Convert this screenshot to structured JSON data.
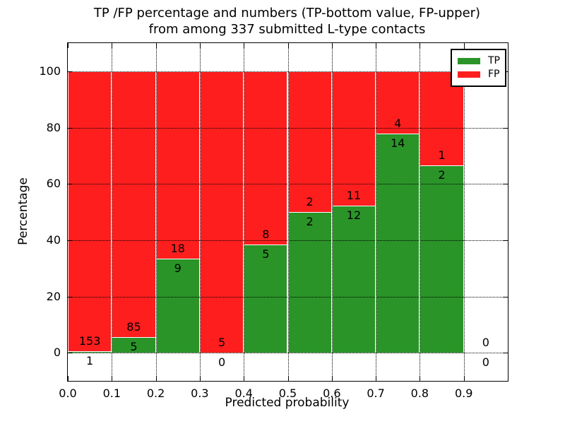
{
  "chart_data": {
    "type": "bar",
    "stacked": true,
    "normalized_to_percent": true,
    "title_line1": "TP /FP percentage and numbers (TP-bottom value, FP-upper)",
    "title_line2": "from among 337 submitted L-type contacts",
    "xlabel": "Predicted probability",
    "ylabel": "Percentage",
    "xlim": [
      0.0,
      1.0
    ],
    "ylim": [
      -10,
      110
    ],
    "grid": true,
    "x_ticks": [
      {
        "label": "0.0",
        "value": 0.0
      },
      {
        "label": "0.1",
        "value": 0.1
      },
      {
        "label": "0.2",
        "value": 0.2
      },
      {
        "label": "0.3",
        "value": 0.3
      },
      {
        "label": "0.4",
        "value": 0.4
      },
      {
        "label": "0.5",
        "value": 0.5
      },
      {
        "label": "0.6",
        "value": 0.6
      },
      {
        "label": "0.7",
        "value": 0.7
      },
      {
        "label": "0.8",
        "value": 0.8
      },
      {
        "label": "0.9",
        "value": 0.9
      }
    ],
    "y_ticks": [
      {
        "label": "0",
        "value": 0
      },
      {
        "label": "20",
        "value": 20
      },
      {
        "label": "40",
        "value": 40
      },
      {
        "label": "60",
        "value": 60
      },
      {
        "label": "80",
        "value": 80
      },
      {
        "label": "100",
        "value": 100
      }
    ],
    "bins": [
      {
        "x_start": 0.0,
        "x_end": 0.1,
        "tp": 1,
        "fp": 153
      },
      {
        "x_start": 0.1,
        "x_end": 0.2,
        "tp": 5,
        "fp": 85
      },
      {
        "x_start": 0.2,
        "x_end": 0.3,
        "tp": 9,
        "fp": 18
      },
      {
        "x_start": 0.3,
        "x_end": 0.4,
        "tp": 0,
        "fp": 5
      },
      {
        "x_start": 0.4,
        "x_end": 0.5,
        "tp": 5,
        "fp": 8
      },
      {
        "x_start": 0.5,
        "x_end": 0.6,
        "tp": 2,
        "fp": 2
      },
      {
        "x_start": 0.6,
        "x_end": 0.7,
        "tp": 12,
        "fp": 11
      },
      {
        "x_start": 0.7,
        "x_end": 0.8,
        "tp": 14,
        "fp": 4
      },
      {
        "x_start": 0.8,
        "x_end": 0.9,
        "tp": 2,
        "fp": 1
      },
      {
        "x_start": 0.9,
        "x_end": 1.0,
        "tp": 0,
        "fp": 0
      }
    ],
    "total_contacts": 337,
    "legend": {
      "position": "upper right",
      "entries": [
        {
          "label": "TP",
          "color": "#2a9428"
        },
        {
          "label": "FP",
          "color": "#ff1e1e"
        }
      ]
    },
    "colors": {
      "tp_bar": "#2a9428",
      "fp_bar": "#ff1e1e",
      "bar_edge": "#ffffff",
      "grid": "#000000",
      "text": "#000000",
      "background": "#ffffff"
    }
  }
}
